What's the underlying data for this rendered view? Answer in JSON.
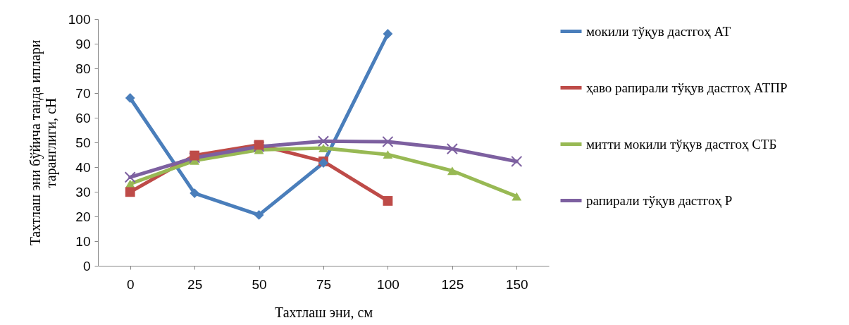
{
  "chart_data": {
    "type": "line",
    "xlabel": "Тахтлаш  эни, см",
    "ylabel": "Тахтлаш эни бўйича танда иплари таранглиги, сН",
    "categories": [
      "0",
      "25",
      "50",
      "75",
      "100",
      "125",
      "150"
    ],
    "ylim": [
      0,
      100
    ],
    "yticks": [
      0,
      10,
      20,
      30,
      40,
      50,
      60,
      70,
      80,
      90,
      100
    ],
    "grid": false,
    "legend": "right",
    "series": [
      {
        "name": "мокили тўқув дастгоҳ АТ",
        "color": "#4a7ebb",
        "marker": "diamond",
        "values": [
          68,
          29.4,
          20.6,
          41.7,
          94,
          null,
          null
        ]
      },
      {
        "name": "ҳаво рапирали тўқув дастгоҳ АТПР",
        "color": "#be4b48",
        "marker": "square",
        "values": [
          29.9,
          44.7,
          49,
          42.3,
          26.3,
          null,
          null
        ]
      },
      {
        "name": "митти мокили тўқув дастгоҳ СТБ",
        "color": "#98b954",
        "marker": "triangle",
        "values": [
          33.2,
          42.6,
          47,
          47.7,
          45.1,
          38.5,
          28.1
        ]
      },
      {
        "name": "рапирали тўқув дастгоҳ Р",
        "color": "#7d60a0",
        "marker": "cross",
        "values": [
          35.9,
          43.8,
          48.3,
          50.5,
          50.3,
          47.4,
          42.3
        ]
      }
    ]
  }
}
